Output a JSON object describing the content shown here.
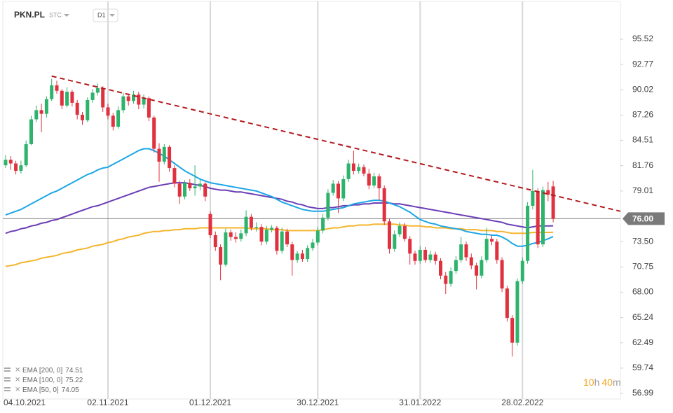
{
  "chart_data": {
    "type": "candlestick",
    "symbol": "PKN.PL",
    "market": "STC",
    "interval": "D1",
    "countdown": [
      "10",
      "h",
      "40",
      "m"
    ],
    "categories": [
      "04.10.2021",
      null,
      null,
      null,
      null,
      null,
      null,
      null,
      null,
      null,
      null,
      null,
      null,
      null,
      null,
      null,
      null,
      null,
      null,
      null,
      "02.11.2021",
      null,
      null,
      null,
      null,
      null,
      null,
      null,
      null,
      null,
      null,
      null,
      null,
      null,
      null,
      null,
      null,
      null,
      null,
      null,
      "01.12.2021",
      null,
      null,
      null,
      null,
      null,
      null,
      null,
      null,
      null,
      null,
      null,
      null,
      null,
      null,
      null,
      null,
      null,
      null,
      null,
      null,
      "30.12.2021",
      null,
      null,
      null,
      null,
      null,
      null,
      null,
      null,
      null,
      null,
      null,
      null,
      null,
      null,
      null,
      null,
      null,
      null,
      null,
      "31.01.2022",
      null,
      null,
      null,
      null,
      null,
      null,
      null,
      null,
      null,
      null,
      null,
      null,
      null,
      null,
      null,
      null,
      null,
      null,
      null,
      "28.02.2022",
      null,
      null,
      null,
      null,
      null,
      null
    ],
    "candles": [
      [
        81.8,
        82.9,
        81.5,
        82.4
      ],
      [
        82.4,
        82.8,
        81.3,
        82.0
      ],
      [
        82.0,
        82.3,
        80.8,
        81.2
      ],
      [
        81.2,
        82.3,
        80.9,
        81.8
      ],
      [
        81.8,
        84.5,
        81.6,
        84.1
      ],
      [
        84.1,
        87.2,
        84.0,
        86.8
      ],
      [
        86.8,
        88.3,
        86.5,
        87.8
      ],
      [
        87.8,
        88.5,
        85.4,
        87.4
      ],
      [
        87.4,
        89.3,
        87.0,
        89.0
      ],
      [
        89.0,
        91.2,
        88.8,
        90.5
      ],
      [
        90.5,
        91.0,
        89.6,
        89.9
      ],
      [
        89.9,
        90.1,
        87.9,
        88.3
      ],
      [
        88.3,
        90.3,
        88.1,
        89.8
      ],
      [
        89.8,
        90.0,
        88.2,
        88.6
      ],
      [
        88.6,
        88.9,
        86.8,
        87.3
      ],
      [
        87.3,
        87.6,
        86.2,
        86.7
      ],
      [
        86.7,
        89.2,
        86.5,
        88.9
      ],
      [
        88.9,
        90.1,
        88.6,
        89.7
      ],
      [
        89.7,
        90.7,
        89.4,
        90.2
      ],
      [
        90.2,
        90.4,
        87.6,
        88.1
      ],
      [
        88.1,
        88.5,
        86.8,
        87.2
      ],
      [
        87.2,
        87.5,
        85.6,
        86.0
      ],
      [
        86.0,
        88.2,
        85.8,
        87.8
      ],
      [
        87.8,
        89.7,
        87.5,
        89.3
      ],
      [
        89.3,
        89.6,
        88.3,
        88.8
      ],
      [
        88.8,
        89.9,
        88.5,
        89.5
      ],
      [
        89.5,
        89.8,
        87.9,
        88.4
      ],
      [
        88.4,
        89.5,
        88.0,
        89.1
      ],
      [
        89.1,
        89.3,
        86.6,
        87.0
      ],
      [
        87.0,
        87.2,
        83.2,
        83.6
      ],
      [
        83.6,
        84.2,
        80.0,
        82.2
      ],
      [
        82.2,
        84.1,
        81.9,
        83.8
      ],
      [
        83.8,
        84.0,
        81.1,
        81.5
      ],
      [
        81.5,
        81.8,
        79.4,
        79.8
      ],
      [
        79.8,
        80.1,
        77.6,
        78.4
      ],
      [
        78.4,
        80.2,
        78.1,
        79.9
      ],
      [
        79.9,
        80.3,
        79.0,
        79.3
      ],
      [
        79.3,
        81.8,
        78.5,
        79.5
      ],
      [
        79.5,
        80.2,
        79.1,
        79.8
      ],
      [
        79.8,
        80.0,
        77.9,
        78.4
      ],
      [
        76.5,
        76.8,
        73.9,
        74.2
      ],
      [
        74.2,
        74.6,
        72.5,
        72.9
      ],
      [
        72.9,
        73.2,
        69.3,
        71.0
      ],
      [
        71.0,
        74.9,
        70.8,
        74.5
      ],
      [
        74.5,
        74.8,
        73.6,
        74.0
      ],
      [
        74.0,
        74.5,
        73.4,
        73.8
      ],
      [
        73.8,
        74.8,
        73.5,
        74.4
      ],
      [
        74.4,
        76.9,
        74.1,
        76.2
      ],
      [
        76.2,
        76.5,
        74.7,
        75.0
      ],
      [
        75.0,
        75.6,
        74.6,
        75.1
      ],
      [
        75.1,
        75.4,
        73.1,
        73.5
      ],
      [
        73.5,
        75.2,
        73.2,
        74.8
      ],
      [
        74.8,
        75.3,
        74.5,
        75.0
      ],
      [
        75.0,
        75.2,
        72.1,
        72.5
      ],
      [
        72.5,
        75.0,
        72.2,
        74.6
      ],
      [
        74.6,
        74.9,
        72.9,
        73.2
      ],
      [
        73.2,
        73.5,
        69.8,
        71.5
      ],
      [
        71.5,
        72.5,
        71.2,
        72.2
      ],
      [
        72.2,
        72.6,
        71.3,
        71.6
      ],
      [
        71.6,
        73.1,
        71.3,
        72.8
      ],
      [
        72.8,
        73.8,
        72.5,
        73.4
      ],
      [
        73.4,
        75.1,
        73.1,
        74.7
      ],
      [
        74.7,
        76.5,
        74.4,
        76.1
      ],
      [
        76.1,
        79.2,
        75.8,
        78.8
      ],
      [
        78.8,
        80.2,
        78.5,
        79.8
      ],
      [
        79.8,
        80.1,
        76.6,
        78.2
      ],
      [
        78.2,
        80.7,
        77.9,
        80.3
      ],
      [
        80.3,
        82.4,
        80.0,
        82.0
      ],
      [
        82.0,
        83.4,
        80.8,
        81.2
      ],
      [
        81.2,
        82.0,
        80.9,
        81.6
      ],
      [
        81.6,
        81.9,
        80.6,
        80.9
      ],
      [
        80.9,
        81.4,
        79.2,
        79.6
      ],
      [
        79.6,
        81.0,
        79.3,
        80.6
      ],
      [
        80.6,
        80.9,
        78.0,
        79.3
      ],
      [
        79.3,
        79.6,
        75.3,
        75.7
      ],
      [
        75.7,
        76.0,
        72.2,
        72.7
      ],
      [
        72.7,
        74.7,
        72.4,
        74.3
      ],
      [
        74.3,
        75.6,
        74.0,
        75.2
      ],
      [
        75.2,
        75.5,
        73.5,
        73.8
      ],
      [
        73.8,
        74.1,
        71.0,
        72.2
      ],
      [
        72.2,
        72.5,
        71.0,
        71.4
      ],
      [
        71.4,
        73.0,
        71.1,
        72.6
      ],
      [
        72.6,
        72.9,
        71.2,
        71.5
      ],
      [
        71.5,
        72.5,
        71.2,
        72.1
      ],
      [
        72.1,
        72.4,
        71.0,
        71.4
      ],
      [
        71.4,
        71.7,
        69.4,
        69.8
      ],
      [
        69.8,
        70.2,
        67.8,
        68.9
      ],
      [
        68.9,
        70.7,
        68.6,
        70.3
      ],
      [
        70.3,
        71.9,
        70.0,
        71.5
      ],
      [
        71.5,
        74.0,
        71.2,
        73.2
      ],
      [
        73.2,
        73.5,
        71.4,
        71.8
      ],
      [
        71.8,
        72.2,
        70.5,
        70.9
      ],
      [
        70.9,
        71.2,
        68.3,
        69.8
      ],
      [
        69.8,
        71.9,
        69.5,
        71.5
      ],
      [
        71.5,
        75.0,
        71.2,
        73.8
      ],
      [
        73.8,
        74.2,
        73.1,
        73.5
      ],
      [
        73.5,
        73.8,
        71.1,
        71.5
      ],
      [
        71.5,
        71.8,
        68.0,
        68.4
      ],
      [
        68.4,
        68.7,
        64.8,
        65.2
      ],
      [
        65.2,
        65.5,
        61.0,
        62.5
      ],
      [
        62.5,
        69.5,
        62.2,
        69.2
      ],
      [
        69.2,
        71.8,
        68.9,
        71.4
      ],
      [
        71.4,
        77.8,
        71.1,
        77.4
      ],
      [
        77.4,
        81.3,
        77.0,
        79.0
      ],
      [
        79.0,
        79.3,
        72.8,
        73.2
      ],
      [
        73.2,
        79.5,
        72.9,
        79.1
      ],
      [
        79.1,
        80.0,
        77.9,
        78.6
      ],
      [
        79.5,
        80.1,
        75.6,
        76.0
      ]
    ],
    "up_color": "#2db36b",
    "down_color": "#e0313f",
    "series": [
      {
        "name": "EMA [200,  0]",
        "color": "#f5b52e",
        "values": [
          70.8,
          70.9,
          71.0,
          71.2,
          71.3,
          71.4,
          71.5,
          71.7,
          71.8,
          71.9,
          72.0,
          72.2,
          72.3,
          72.4,
          72.6,
          72.7,
          72.8,
          73.0,
          73.1,
          73.2,
          73.4,
          73.5,
          73.7,
          73.8,
          74.0,
          74.1,
          74.2,
          74.4,
          74.5,
          74.6,
          74.6,
          74.7,
          74.7,
          74.8,
          74.8,
          74.9,
          74.9,
          74.9,
          75.0,
          75.0,
          75.0,
          75.0,
          75.0,
          75.0,
          75.0,
          75.0,
          75.0,
          75.0,
          74.9,
          74.9,
          74.9,
          74.9,
          74.8,
          74.8,
          74.8,
          74.7,
          74.7,
          74.7,
          74.7,
          74.7,
          74.7,
          74.7,
          74.8,
          74.9,
          75.0,
          75.0,
          75.1,
          75.2,
          75.2,
          75.3,
          75.3,
          75.3,
          75.4,
          75.4,
          75.4,
          75.4,
          75.4,
          75.3,
          75.3,
          75.2,
          75.2,
          75.2,
          75.1,
          75.1,
          75.0,
          75.0,
          75.0,
          74.9,
          74.9,
          74.9,
          74.8,
          74.8,
          74.8,
          74.7,
          74.7,
          74.7,
          74.6,
          74.6,
          74.5,
          74.4,
          74.4,
          74.4,
          74.4,
          74.5,
          74.5,
          74.5,
          74.5,
          74.51
        ]
      },
      {
        "name": "EMA [100,  0]",
        "color": "#6a3db5",
        "values": [
          74.4,
          74.6,
          74.7,
          74.9,
          75.0,
          75.2,
          75.3,
          75.5,
          75.6,
          75.8,
          75.9,
          76.1,
          76.3,
          76.5,
          76.7,
          76.9,
          77.1,
          77.3,
          77.4,
          77.6,
          77.8,
          78.0,
          78.2,
          78.4,
          78.6,
          78.8,
          79.0,
          79.2,
          79.4,
          79.5,
          79.6,
          79.7,
          79.8,
          79.9,
          79.9,
          79.9,
          79.8,
          79.7,
          79.6,
          79.5,
          79.3,
          79.2,
          79.1,
          79.1,
          79.0,
          78.9,
          78.9,
          78.8,
          78.7,
          78.6,
          78.5,
          78.4,
          78.3,
          78.2,
          78.1,
          77.9,
          77.8,
          77.6,
          77.5,
          77.3,
          77.2,
          77.1,
          77.1,
          77.2,
          77.2,
          77.3,
          77.4,
          77.4,
          77.5,
          77.5,
          77.6,
          77.6,
          77.7,
          77.7,
          77.7,
          77.7,
          77.6,
          77.6,
          77.5,
          77.4,
          77.3,
          77.2,
          77.1,
          77.0,
          76.9,
          76.8,
          76.7,
          76.6,
          76.5,
          76.4,
          76.3,
          76.2,
          76.1,
          76.0,
          75.9,
          75.8,
          75.7,
          75.6,
          75.4,
          75.3,
          75.2,
          75.1,
          75.0,
          75.1,
          75.2,
          75.2,
          75.2,
          75.22
        ]
      },
      {
        "name": "EMA [50,  0]",
        "color": "#1ca6e6",
        "values": [
          76.4,
          76.6,
          76.8,
          77.0,
          77.3,
          77.6,
          77.9,
          78.2,
          78.5,
          78.8,
          79.0,
          79.3,
          79.6,
          79.9,
          80.2,
          80.5,
          80.8,
          81.0,
          81.3,
          81.5,
          81.6,
          81.9,
          82.2,
          82.5,
          82.8,
          83.1,
          83.4,
          83.6,
          83.6,
          83.4,
          83.1,
          82.8,
          82.4,
          82.0,
          81.6,
          81.2,
          80.9,
          80.6,
          80.3,
          80.1,
          79.9,
          79.8,
          79.7,
          79.6,
          79.5,
          79.4,
          79.3,
          79.2,
          79.1,
          79.0,
          78.8,
          78.6,
          78.4,
          78.1,
          77.8,
          77.6,
          77.4,
          77.2,
          77.0,
          76.9,
          76.8,
          76.8,
          76.8,
          76.9,
          77.0,
          77.1,
          77.2,
          77.4,
          77.6,
          77.7,
          77.8,
          77.9,
          78.0,
          78.0,
          77.9,
          77.7,
          77.5,
          77.3,
          77.0,
          76.7,
          76.3,
          75.9,
          75.7,
          75.5,
          75.4,
          75.2,
          75.1,
          75.0,
          74.9,
          74.8,
          74.6,
          74.5,
          74.4,
          74.3,
          74.3,
          74.2,
          74.2,
          74.0,
          73.7,
          73.3,
          73.0,
          73.0,
          73.1,
          73.3,
          73.4,
          73.6,
          73.8,
          74.05
        ]
      }
    ],
    "trend_line": {
      "values": [
        91.5,
        76.8
      ],
      "color": "#b3191f"
    },
    "last_price": {
      "value": 76,
      "label": "76.00"
    },
    "ylim": [
      56.38,
      99.02
    ],
    "yticks": [
      56.99,
      59.74,
      62.49,
      65.24,
      {
        "value": 68,
        "label": "68.00"
      },
      70.75,
      {
        "value": 73.5,
        "label": "73.50"
      },
      79.01,
      81.76,
      84.51,
      87.26,
      90.02,
      92.77,
      95.52
    ],
    "grid": true
  }
}
